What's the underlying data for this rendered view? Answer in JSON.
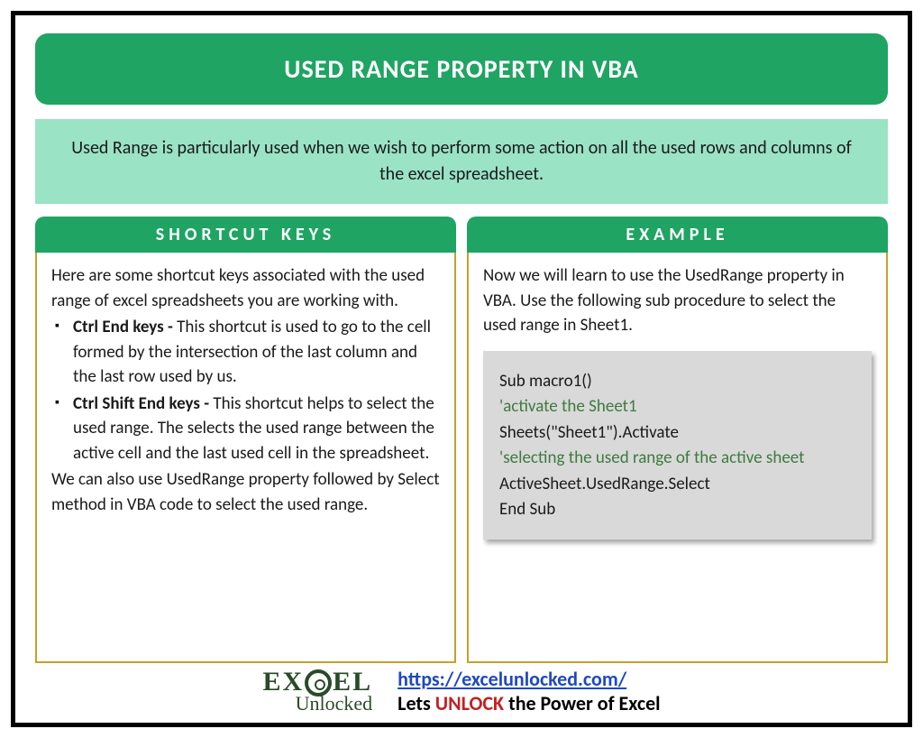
{
  "colors": {
    "header_green": "#1fa463",
    "subtitle_green": "#9ae3c5",
    "box_border": "#c8a02a",
    "codebox_bg": "#d9d9d9",
    "code_comment": "#3f7a3f",
    "link_blue": "#1f49c1",
    "unlock_red": "#c42020",
    "logo_color": "#2a4a2a"
  },
  "title": "USED RANGE PROPERTY IN VBA",
  "subtitle": "Used Range is particularly used when we wish to perform some action on all the used rows and columns of the excel spreadsheet.",
  "left": {
    "header": "SHORTCUT KEYS",
    "intro": "Here are some shortcut keys associated with the used range of excel spreadsheets you are working with.",
    "items": [
      {
        "bold": "Ctrl End keys - ",
        "rest": "This shortcut is used to go to the cell formed by the intersection of the last column and the last row used by us."
      },
      {
        "bold": "Ctrl Shift End keys - ",
        "rest": "This shortcut helps to select the used range. The selects the used range between the active cell and the last used cell in the spreadsheet."
      }
    ],
    "outro": "We can also use UsedRange property followed by Select method in VBA code to select the used range."
  },
  "right": {
    "header": "EXAMPLE",
    "intro": "Now we will learn to use the UsedRange property in VBA. Use the following sub procedure to select the used range in Sheet1.",
    "code": {
      "l1": "Sub macro1()",
      "l2": "'activate the Sheet1",
      "l3": "Sheets(\"Sheet1\").Activate",
      "l4": "'selecting the used range of the active sheet",
      "l5": "ActiveSheet.UsedRange.Select",
      "l6": "End Sub"
    }
  },
  "footer": {
    "logo_top_left": "EX",
    "logo_top_right": "EL",
    "logo_bot": "Unlocked",
    "url": "https://excelunlocked.com/",
    "tag_pre": "Lets ",
    "tag_highlight": "UNLOCK",
    "tag_post": " the Power of Excel"
  }
}
